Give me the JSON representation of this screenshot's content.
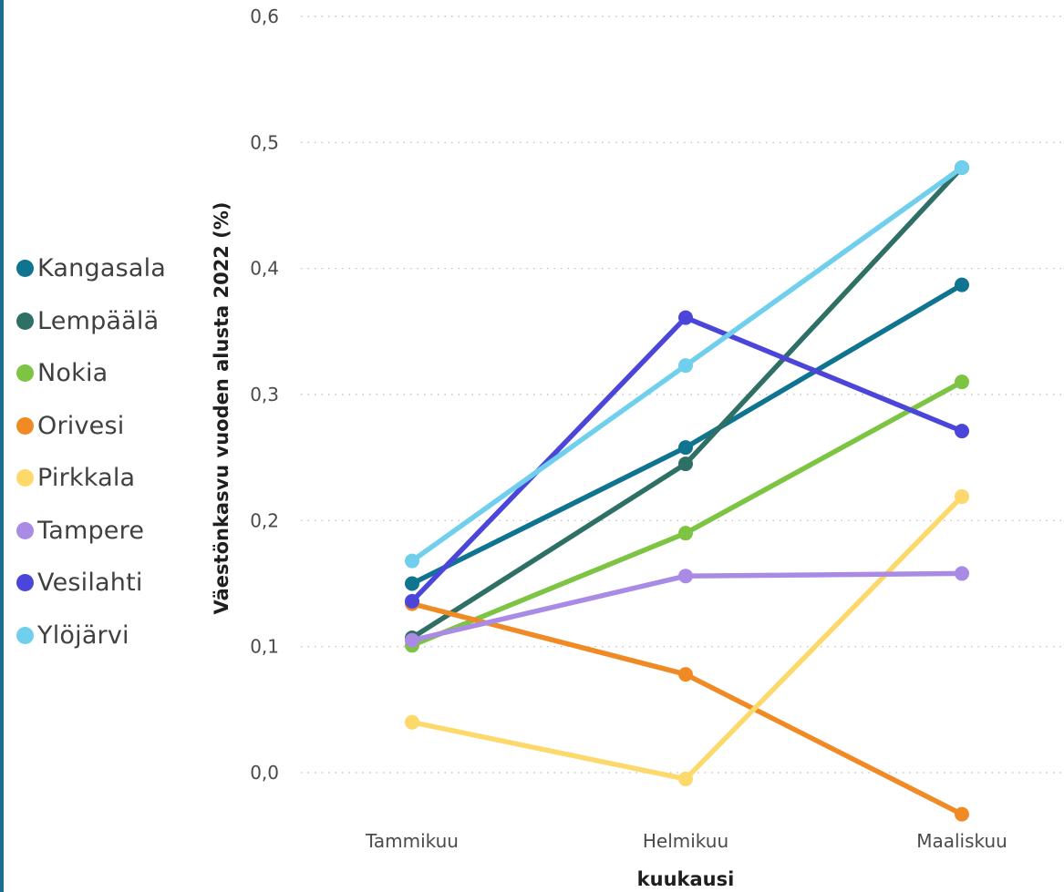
{
  "chart_data": {
    "type": "line",
    "categories": [
      "Tammikuu",
      "Helmikuu",
      "Maaliskuu"
    ],
    "xlabel": "kuukausi",
    "ylabel": "Väestönkasvu vuoden alusta 2022 (%)",
    "ylim": [
      0.0,
      0.6
    ],
    "yticks": [
      "0,0",
      "0,1",
      "0,2",
      "0,3",
      "0,4",
      "0,5",
      "0,6"
    ],
    "grid": "horizontal-dotted",
    "legend_position": "left",
    "series": [
      {
        "name": "Kangasala",
        "color": "#0e7490",
        "values": [
          0.15,
          0.258,
          0.387
        ]
      },
      {
        "name": "Lempäälä",
        "color": "#2f7066",
        "values": [
          0.107,
          0.245,
          0.48
        ]
      },
      {
        "name": "Nokia",
        "color": "#7cc442",
        "values": [
          0.101,
          0.19,
          0.31
        ]
      },
      {
        "name": "Orivesi",
        "color": "#f08a24",
        "values": [
          0.134,
          0.078,
          -0.033
        ]
      },
      {
        "name": "Pirkkala",
        "color": "#fdd86a",
        "values": [
          0.04,
          -0.005,
          0.219
        ]
      },
      {
        "name": "Tampere",
        "color": "#a98be6",
        "values": [
          0.105,
          0.156,
          0.158
        ]
      },
      {
        "name": "Vesilahti",
        "color": "#4b46d9",
        "values": [
          0.136,
          0.361,
          0.271
        ]
      },
      {
        "name": "Ylöjärvi",
        "color": "#6fcfec",
        "values": [
          0.168,
          0.323,
          0.48
        ]
      }
    ]
  }
}
